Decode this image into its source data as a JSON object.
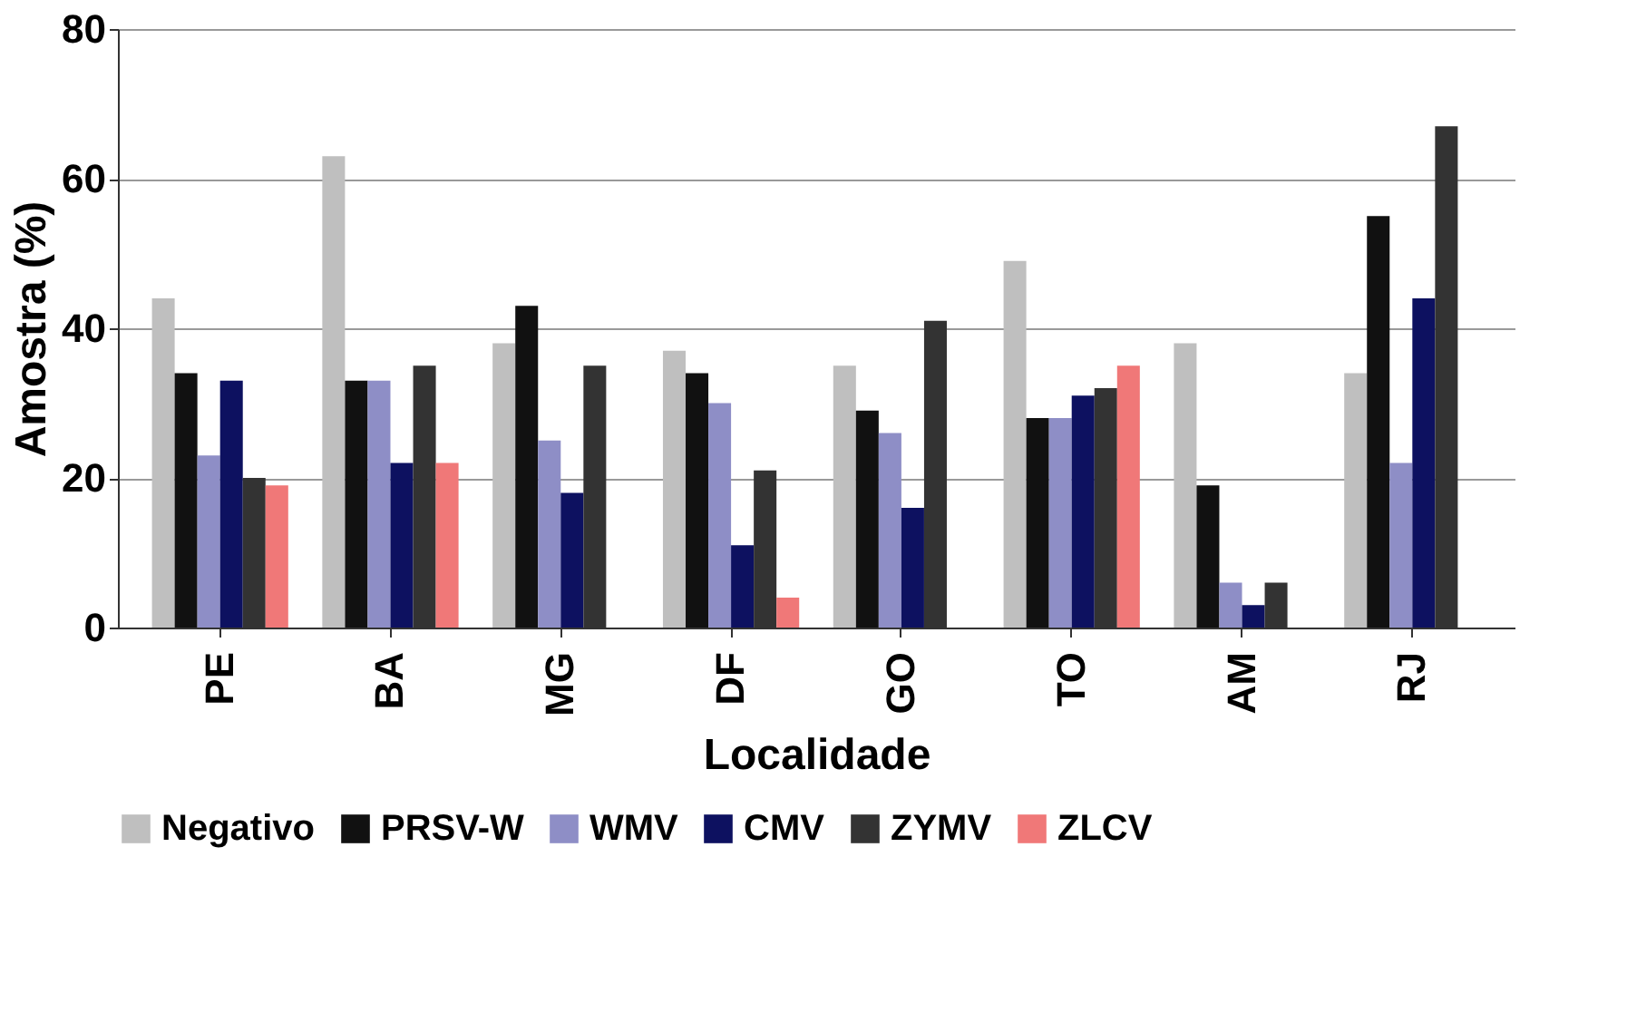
{
  "chart_data": {
    "type": "bar",
    "xlabel": "Localidade",
    "ylabel": "Amostra (%)",
    "categories": [
      "PE",
      "BA",
      "MG",
      "DF",
      "GO",
      "TO",
      "AM",
      "RJ"
    ],
    "series": [
      {
        "name": "Negativo",
        "color": "#bfbfbf",
        "values": [
          44,
          63,
          38,
          37,
          35,
          49,
          38,
          34
        ]
      },
      {
        "name": "PRSV-W",
        "color": "#111111",
        "values": [
          34,
          33,
          43,
          34,
          29,
          28,
          19,
          55
        ]
      },
      {
        "name": "WMV",
        "color": "#8e8ec6",
        "values": [
          23,
          33,
          25,
          30,
          26,
          28,
          6,
          22
        ]
      },
      {
        "name": "CMV",
        "color": "#0d1160",
        "values": [
          33,
          22,
          18,
          11,
          16,
          31,
          3,
          44
        ]
      },
      {
        "name": "ZYMV",
        "color": "#333333",
        "values": [
          20,
          35,
          35,
          21,
          41,
          32,
          6,
          67
        ]
      },
      {
        "name": "ZLCV",
        "color": "#f07878",
        "values": [
          19,
          22,
          0,
          4,
          0,
          35,
          0,
          0
        ]
      }
    ],
    "ylim": [
      0,
      80
    ],
    "yticks": [
      0,
      20,
      40,
      60,
      80
    ],
    "grid": "y",
    "legend": "bottom"
  }
}
